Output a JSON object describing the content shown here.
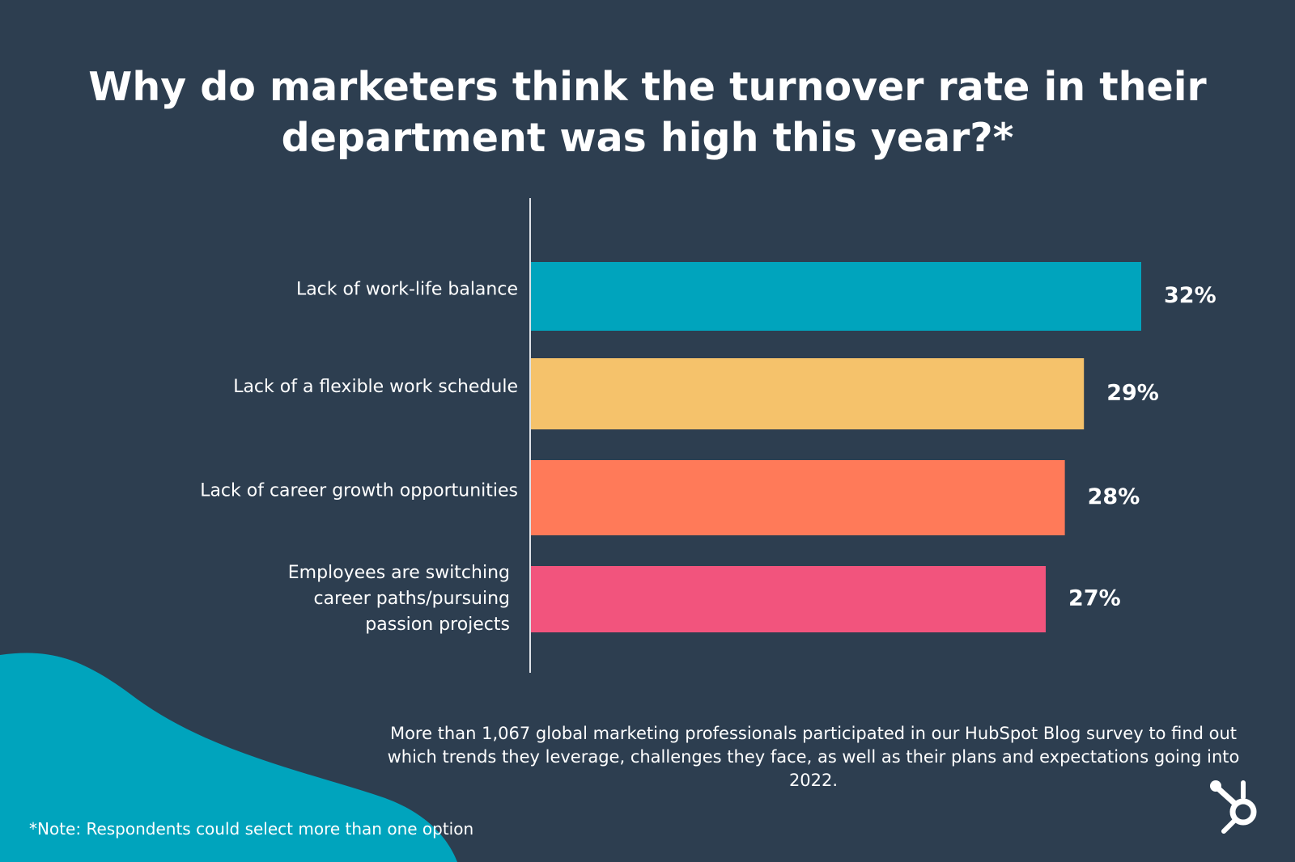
{
  "colors": {
    "background": "#2d3e50",
    "blob": "#00a4bd",
    "text": "#ffffff",
    "axis": "#dfe3e8"
  },
  "chart_data": {
    "type": "bar",
    "orientation": "horizontal",
    "title": "Why do marketers think the turnover rate in their department was high this year?*",
    "categories": [
      "Lack of work-life balance",
      "Lack of a flexible work schedule",
      "Lack of career growth opportunities",
      "Employees are switching career paths/pursuing passion projects"
    ],
    "category_lines": [
      [
        "Lack of work-life balance"
      ],
      [
        "Lack of a flexible work schedule"
      ],
      [
        "Lack of career growth opportunities"
      ],
      [
        "Employees are switching",
        "career paths/pursuing",
        "passion projects"
      ]
    ],
    "values": [
      32,
      29,
      28,
      27
    ],
    "value_labels": [
      "32%",
      "29%",
      "28%",
      "27%"
    ],
    "bar_colors": [
      "#00a4bd",
      "#f5c26b",
      "#ff7a59",
      "#f2547d"
    ],
    "xlim": [
      0,
      32
    ],
    "grid": false,
    "legend": "none"
  },
  "footer": {
    "description": "More than 1,067 global marketing professionals participated in our HubSpot Blog survey to find out which trends they leverage, challenges they face, as well as their plans and expectations going into 2022.",
    "note": "*Note: Respondents could select more than one option",
    "logo_icon": "hubspot-sprocket-icon"
  }
}
